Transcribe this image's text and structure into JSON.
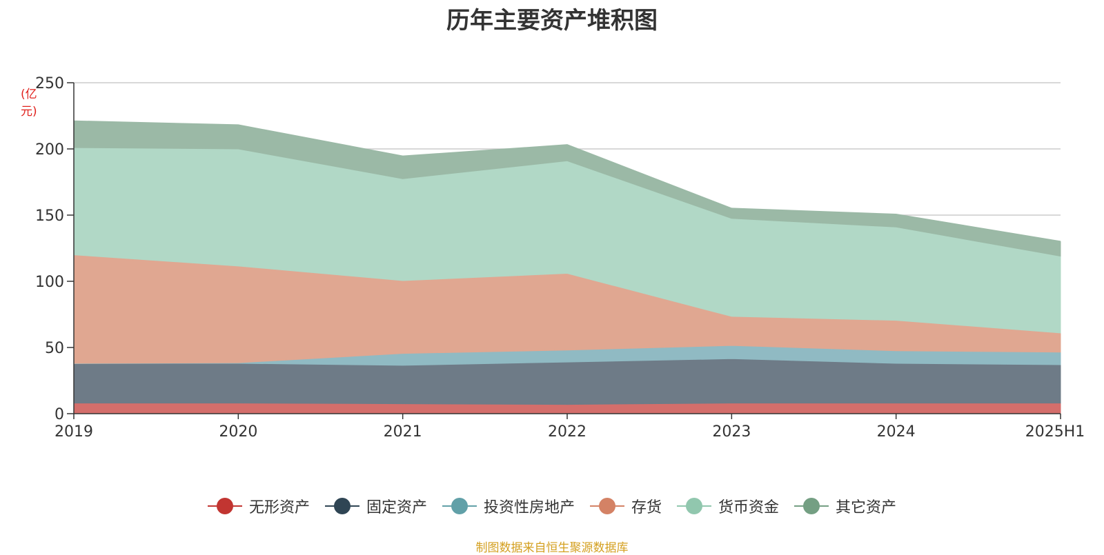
{
  "chart_data": {
    "type": "area",
    "stacked": true,
    "title": "历年主要资产堆积图",
    "y_unit": "(亿元)",
    "categories": [
      "2019",
      "2020",
      "2021",
      "2022",
      "2023",
      "2024",
      "2025H1"
    ],
    "ylim": [
      0,
      250
    ],
    "yticks": [
      0,
      50,
      100,
      150,
      200,
      250
    ],
    "grid": true,
    "legend_position": "bottom",
    "series": [
      {
        "name": "无形资产",
        "color": "#c23531",
        "fill": "#d46e6b",
        "values": [
          8,
          8,
          7.5,
          7,
          8,
          8,
          8
        ]
      },
      {
        "name": "固定资产",
        "color": "#2f4554",
        "fill": "#6e7b87",
        "values": [
          30,
          30,
          29,
          32,
          33.5,
          30,
          29
        ]
      },
      {
        "name": "投资性房地产",
        "color": "#61a0a8",
        "fill": "#90bac3",
        "values": [
          0,
          0.5,
          9,
          9,
          10,
          9.5,
          9.5
        ]
      },
      {
        "name": "存货",
        "color": "#d48265",
        "fill": "#e0a791",
        "values": [
          82,
          73,
          55,
          58,
          22,
          23,
          14.5
        ]
      },
      {
        "name": "货币资金",
        "color": "#91c7ae",
        "fill": "#b1d8c6",
        "values": [
          81,
          88.5,
          77,
          85,
          74,
          70.5,
          58
        ]
      },
      {
        "name": "其它资产",
        "color": "#749f83",
        "fill": "#9bb9a6",
        "values": [
          20,
          18,
          17,
          12,
          7.5,
          9.5,
          11
        ]
      }
    ]
  },
  "source_note": "制图数据来自恒生聚源数据库"
}
